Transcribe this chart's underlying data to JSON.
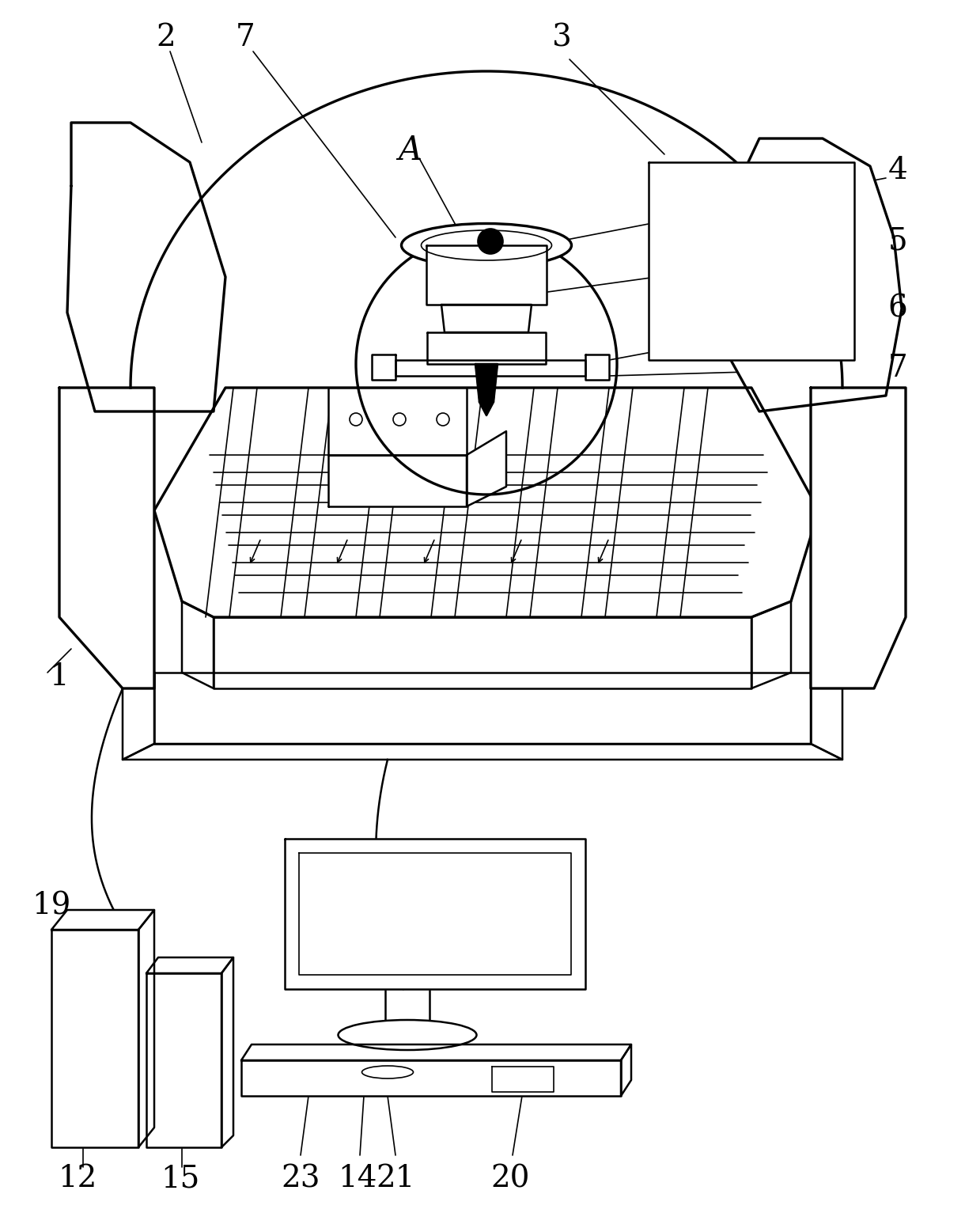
{
  "bg": "#ffffff",
  "lc": "#000000",
  "lw": 1.8,
  "lw2": 1.2,
  "lw3": 2.4,
  "fs": 28,
  "figsize": [
    12.2,
    15.33
  ],
  "dpi": 100
}
